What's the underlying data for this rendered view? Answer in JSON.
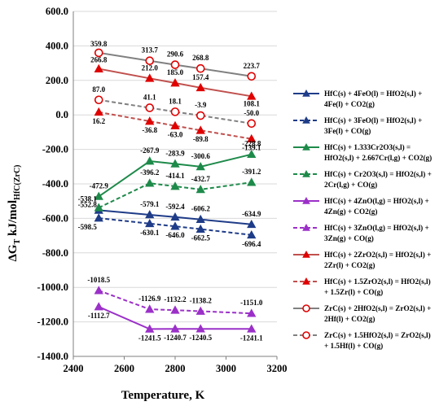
{
  "chart_data": {
    "type": "line",
    "xlabel": "Temperature, K",
    "ylabel_main": "ΔG",
    "ylabel_sub_t": "T",
    "ylabel_mid": " kJ/mol",
    "ylabel_sub_unit": "HfC(ZrC)",
    "xlim": [
      2400,
      3200
    ],
    "ylim": [
      -1400,
      600
    ],
    "x_ticks": [
      2400,
      2600,
      2800,
      3000,
      3200
    ],
    "x_tick_labels": [
      "2400",
      "2600",
      "2800",
      "3000",
      "3200"
    ],
    "y_ticks": [
      600,
      400,
      200,
      0,
      -200,
      -400,
      -600,
      -800,
      -1000,
      -1200,
      -1400
    ],
    "y_tick_labels": [
      "600.0",
      "400.0",
      "200.0",
      "0.0",
      "-200.0",
      "-400.0",
      "-600.0",
      "-800.0",
      "-1000.0",
      "-1200.0",
      "-1400.0"
    ],
    "grid": "horizontal",
    "legend_position": "right",
    "series": [
      {
        "name_lines": [
          "HfC(s) + 4FeO(l) = HfO2(s,l) +",
          "4Fe(l) + CO2(g)"
        ],
        "color": "#1f3c88",
        "dash": "solid",
        "marker": "triangle",
        "filled": true,
        "x": [
          2500,
          2700,
          2800,
          2900,
          3100
        ],
        "y": [
          -552.8,
          -579.1,
          -592.4,
          -606.2,
          -634.9
        ],
        "labels": [
          "-552.8",
          "-579.1",
          "-592.4",
          "-606.2",
          "-634.9"
        ]
      },
      {
        "name_lines": [
          "HfC(s) + 3FeO(l) = HfO2(s,l) +",
          "3Fe(l) + CO(g)"
        ],
        "color": "#1f3c88",
        "dash": "dashed",
        "marker": "triangle",
        "filled": true,
        "x": [
          2500,
          2700,
          2800,
          2900,
          3100
        ],
        "y": [
          -598.5,
          -630.1,
          -646.0,
          -662.5,
          -696.4
        ],
        "labels": [
          "-598.5",
          "-630.1",
          "-646.0",
          "-662.5",
          "-696.4"
        ]
      },
      {
        "name_lines": [
          "HfC(s) + 1.333Cr2O3(s,l) =",
          "HfO2(s,l) + 2.667Cr(l,g) + CO2(g)"
        ],
        "color": "#1e8a4a",
        "dash": "solid",
        "marker": "triangle",
        "filled": true,
        "x": [
          2500,
          2700,
          2800,
          2900,
          3100
        ],
        "y": [
          -472.9,
          -267.9,
          -283.9,
          -300.6,
          -228.8
        ],
        "labels": [
          "-472.9",
          "-267.9",
          "-283.9",
          "-300.6",
          "-228.8"
        ]
      },
      {
        "name_lines": [
          "HfC(s) + Cr2O3(s,l) = HfO2(s,l) +",
          "2Cr(l,g) + CO(g)"
        ],
        "color": "#1e8a4a",
        "dash": "dashed",
        "marker": "triangle",
        "filled": true,
        "x": [
          2500,
          2700,
          2800,
          2900,
          3100
        ],
        "y": [
          -538.1,
          -396.2,
          -414.1,
          -432.7,
          -391.2
        ],
        "labels": [
          "-538.1",
          "-396.2",
          "-414.1",
          "-432.7",
          "-391.2"
        ]
      },
      {
        "name_lines": [
          "HfC(s) + 4ZnO(l,g) = HfO2(s,l) +",
          "4Zn(g) + CO2(g)"
        ],
        "color": "#9b30c8",
        "dash": "solid",
        "marker": "triangle",
        "filled": true,
        "x": [
          2500,
          2700,
          2800,
          2900,
          3100
        ],
        "y": [
          -1112.7,
          -1241.5,
          -1240.7,
          -1240.5,
          -1241.1
        ],
        "labels": [
          "-1112.7",
          "-1241.5",
          "-1240.7",
          "-1240.5",
          "-1241.1"
        ]
      },
      {
        "name_lines": [
          "HfC(s) + 3ZnO(l,g) = HfO2(s,l) +",
          "3Zn(g) + CO(g)"
        ],
        "color": "#9b30c8",
        "dash": "dashed",
        "marker": "triangle",
        "filled": true,
        "x": [
          2500,
          2700,
          2800,
          2900,
          3100
        ],
        "y": [
          -1018.5,
          -1126.9,
          -1132.2,
          -1138.2,
          -1151.0
        ],
        "labels": [
          "-1018.5",
          "-1126.9",
          "-1132.2",
          "-1138.2",
          "-1151.0"
        ]
      },
      {
        "name_lines": [
          "HfC(s) + 2ZrO2(s,l) = HfO2(s,l) +",
          "2Zr(l) + CO2(g)"
        ],
        "color": "#c0504d",
        "dash": "solid",
        "marker": "triangle",
        "filled": true,
        "marker_color": "#e00000",
        "x": [
          2500,
          2700,
          2800,
          2900,
          3100
        ],
        "y": [
          266.8,
          212.0,
          185.0,
          157.4,
          108.1
        ],
        "labels": [
          "266.8",
          "212.0",
          "185.0",
          "157.4",
          "108.1"
        ]
      },
      {
        "name_lines": [
          "HfC(s) + 1.5ZrO2(s,l) = HfO2(s,l)",
          "+ 1.5Zr(l) + CO(g)"
        ],
        "color": "#c0504d",
        "dash": "dashed",
        "marker": "triangle",
        "filled": true,
        "marker_color": "#e00000",
        "x": [
          2500,
          2700,
          2800,
          2900,
          3100
        ],
        "y": [
          16.2,
          -36.8,
          -63.0,
          -89.8,
          -139.1
        ],
        "labels": [
          "16.2",
          "-36.8",
          "-63.0",
          "-89.8",
          "-139.1"
        ]
      },
      {
        "name_lines": [
          "ZrC(s) + 2HfO2(s,l) = ZrO2(s,l) +",
          "2Hf(l) + CO2(g)"
        ],
        "color": "#808080",
        "dash": "solid",
        "marker": "circle",
        "filled": false,
        "marker_color": "#e00000",
        "x": [
          2500,
          2700,
          2800,
          2900,
          3100
        ],
        "y": [
          359.8,
          313.7,
          290.6,
          268.8,
          223.7
        ],
        "labels": [
          "359.8",
          "313.7",
          "290.6",
          "268.8",
          "223.7"
        ]
      },
      {
        "name_lines": [
          "ZrC(s) + 1.5HfO2(s,l) = ZrO2(s,l)",
          "+ 1.5Hf(l) + CO(g)"
        ],
        "color": "#808080",
        "dash": "dashed",
        "marker": "circle",
        "filled": false,
        "marker_color": "#e00000",
        "x": [
          2500,
          2700,
          2800,
          2900,
          3100
        ],
        "y": [
          87.0,
          41.1,
          18.1,
          -3.9,
          -50.0
        ],
        "labels": [
          "87.0",
          "41.1",
          "18.1",
          "-3.9",
          "-50.0"
        ]
      }
    ]
  }
}
